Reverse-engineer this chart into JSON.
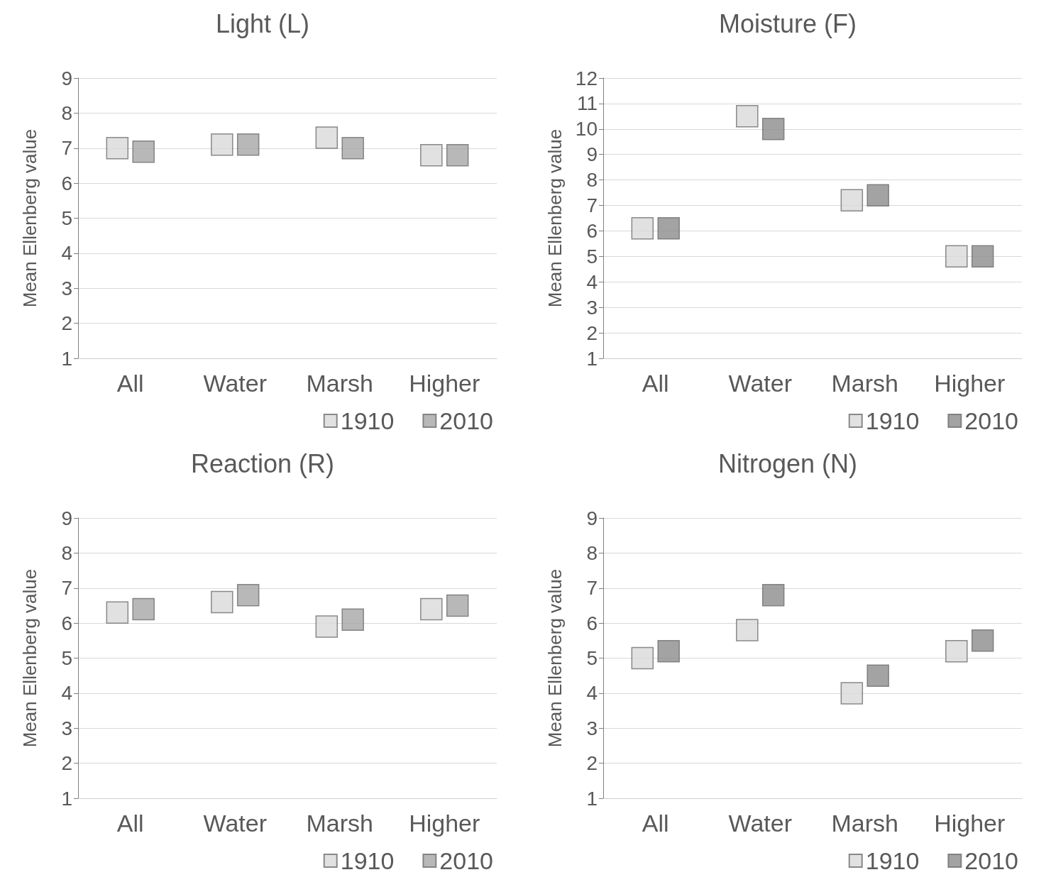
{
  "chart_data": [
    {
      "type": "scatter",
      "title": "Light (L)",
      "ylabel": "Mean Ellenberg value",
      "categories": [
        "All",
        "Water",
        "Marsh",
        "Higher"
      ],
      "ylim": [
        1,
        9
      ],
      "yticks": [
        1,
        2,
        3,
        4,
        5,
        6,
        7,
        8,
        9
      ],
      "grid": "y",
      "legend": "bottom right",
      "marker": "square",
      "series": [
        {
          "name": "1910",
          "color": "#d9d9d9",
          "values": [
            7.0,
            7.1,
            7.3,
            6.8
          ]
        },
        {
          "name": "2010",
          "color": "#a6a6a6",
          "values": [
            6.9,
            7.1,
            7.0,
            6.8
          ]
        }
      ]
    },
    {
      "type": "scatter",
      "title": "Moisture (F)",
      "ylabel": "Mean Ellenberg value",
      "categories": [
        "All",
        "Water",
        "Marsh",
        "Higher"
      ],
      "ylim": [
        1,
        12
      ],
      "yticks": [
        1,
        2,
        3,
        4,
        5,
        6,
        7,
        8,
        9,
        10,
        11,
        12
      ],
      "grid": "y",
      "legend": "bottom right",
      "marker": "square",
      "series": [
        {
          "name": "1910",
          "color": "#d9d9d9",
          "values": [
            6.1,
            10.5,
            7.2,
            5.0
          ]
        },
        {
          "name": "2010",
          "color": "#8c8c8c",
          "values": [
            6.1,
            10.0,
            7.4,
            5.0
          ]
        }
      ]
    },
    {
      "type": "scatter",
      "title": "Reaction (R)",
      "ylabel": "Mean Ellenberg value",
      "categories": [
        "All",
        "Water",
        "Marsh",
        "Higher"
      ],
      "ylim": [
        1,
        9
      ],
      "yticks": [
        1,
        2,
        3,
        4,
        5,
        6,
        7,
        8,
        9
      ],
      "grid": "y",
      "legend": "bottom right",
      "marker": "square",
      "series": [
        {
          "name": "1910",
          "color": "#d9d9d9",
          "values": [
            6.3,
            6.6,
            5.9,
            6.4
          ]
        },
        {
          "name": "2010",
          "color": "#a6a6a6",
          "values": [
            6.4,
            6.8,
            6.1,
            6.5
          ]
        }
      ]
    },
    {
      "type": "scatter",
      "title": "Nitrogen (N)",
      "ylabel": "Mean Ellenberg value",
      "categories": [
        "All",
        "Water",
        "Marsh",
        "Higher"
      ],
      "ylim": [
        1,
        9
      ],
      "yticks": [
        1,
        2,
        3,
        4,
        5,
        6,
        7,
        8,
        9
      ],
      "grid": "y",
      "legend": "bottom right",
      "marker": "square",
      "series": [
        {
          "name": "1910",
          "color": "#d9d9d9",
          "values": [
            5.0,
            5.8,
            4.0,
            5.2
          ]
        },
        {
          "name": "2010",
          "color": "#8c8c8c",
          "values": [
            5.2,
            6.8,
            4.5,
            5.5
          ]
        }
      ]
    }
  ]
}
